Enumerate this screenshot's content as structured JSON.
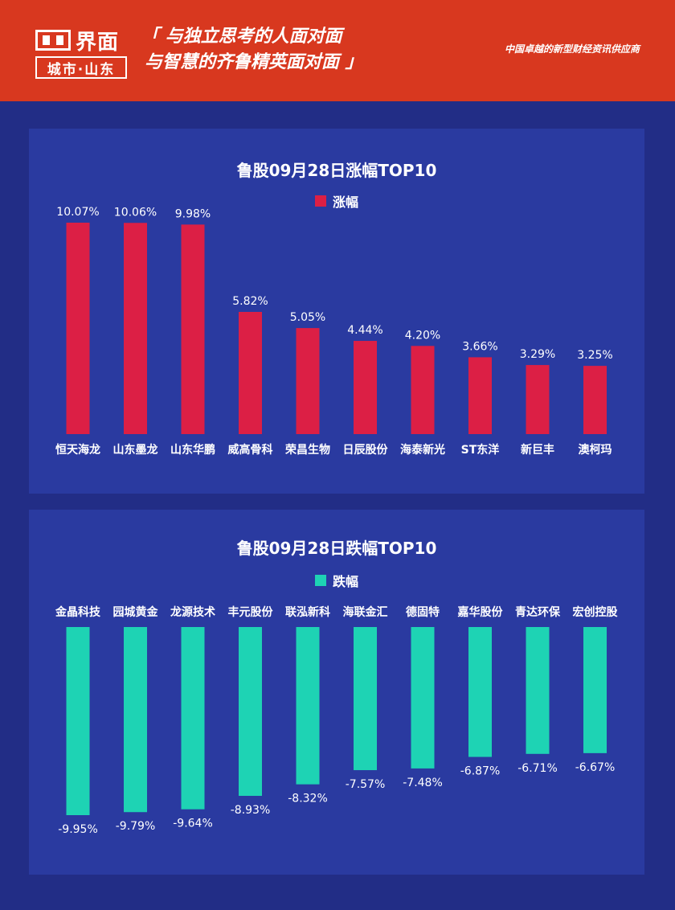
{
  "header": {
    "logo_name": "界面",
    "logo_city": "城市·山东",
    "slogan_line1": "「 与独立思考的人面对面",
    "slogan_line2": "与智慧的齐鲁精英面对面 」",
    "tagline": "中国卓越的新型财经资讯供应商",
    "bg_color": "#d8381f"
  },
  "chart_data": [
    {
      "type": "bar",
      "title": "鲁股09月28日涨幅TOP10",
      "legend": "top",
      "grid": false,
      "categories": [
        "恒天海龙",
        "山东墨龙",
        "山东华鹏",
        "威高骨科",
        "荣昌生物",
        "日辰股份",
        "海泰新光",
        "ST东洋",
        "新巨丰",
        "澳柯玛"
      ],
      "series": [
        {
          "name": "涨幅",
          "color": "#dc1f45",
          "values": [
            10.07,
            10.06,
            9.98,
            5.82,
            5.05,
            4.44,
            4.2,
            3.66,
            3.29,
            3.25
          ],
          "labels": [
            "10.07%",
            "10.06%",
            "9.98%",
            "5.82%",
            "5.05%",
            "4.44%",
            "4.20%",
            "3.66%",
            "3.29%",
            "3.25%"
          ]
        }
      ],
      "ylim": [
        0,
        10.07
      ]
    },
    {
      "type": "bar",
      "title": "鲁股09月28日跌幅TOP10",
      "legend": "top",
      "grid": false,
      "categories": [
        "金晶科技",
        "园城黄金",
        "龙源技术",
        "丰元股份",
        "联泓新科",
        "海联金汇",
        "德固特",
        "嘉华股份",
        "青达环保",
        "宏创控股"
      ],
      "series": [
        {
          "name": "跌幅",
          "color": "#1ed3b4",
          "values": [
            -9.95,
            -9.79,
            -9.64,
            -8.93,
            -8.32,
            -7.57,
            -7.48,
            -6.87,
            -6.71,
            -6.67
          ],
          "labels": [
            "-9.95%",
            "-9.79%",
            "-9.64%",
            "-8.93%",
            "-8.32%",
            "-7.57%",
            "-7.48%",
            "-6.87%",
            "-6.71%",
            "-6.67%"
          ]
        }
      ],
      "ylim": [
        -9.95,
        0
      ]
    }
  ]
}
